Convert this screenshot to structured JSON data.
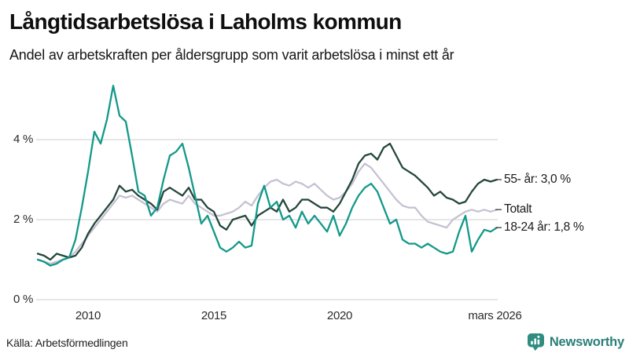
{
  "chart_data": {
    "type": "line",
    "title": "Långtidsarbetslösa i Laholms kommun",
    "subtitle": "Andel av arbetskraften per åldersgrupp som varit arbetslösa i minst ett år",
    "x_start": 2008.0,
    "x_step": 0.25,
    "x_end": 2026.25,
    "ylim": [
      0,
      5.5
    ],
    "grid": true,
    "yticks": [
      {
        "value": 0,
        "label": "0 %"
      },
      {
        "value": 2,
        "label": "2 %"
      },
      {
        "value": 4,
        "label": "4 %"
      }
    ],
    "xticks": [
      {
        "value": 2010,
        "label": "2010"
      },
      {
        "value": 2015,
        "label": "2015"
      },
      {
        "value": 2020,
        "label": "2020"
      },
      {
        "value": 2026.17,
        "label": "mars 2026"
      }
    ],
    "series": [
      {
        "name": "Totalt",
        "color": "#c5c2d3",
        "end_label": "Totalt",
        "end_value": 2.2,
        "values": [
          1.0,
          0.95,
          0.9,
          0.95,
          1.0,
          1.05,
          1.2,
          1.4,
          1.6,
          1.8,
          2.0,
          2.2,
          2.4,
          2.6,
          2.55,
          2.6,
          2.5,
          2.4,
          2.3,
          2.2,
          2.4,
          2.5,
          2.45,
          2.4,
          2.6,
          2.4,
          2.3,
          2.2,
          2.1,
          2.1,
          2.15,
          2.2,
          2.3,
          2.45,
          2.35,
          2.6,
          2.8,
          2.95,
          3.0,
          2.9,
          2.85,
          2.95,
          2.9,
          2.8,
          2.9,
          2.75,
          2.6,
          2.5,
          2.55,
          2.7,
          2.9,
          3.2,
          3.4,
          3.3,
          3.1,
          2.9,
          2.7,
          2.5,
          2.35,
          2.3,
          2.3,
          2.1,
          1.95,
          1.9,
          1.85,
          1.8,
          2.0,
          2.1,
          2.2,
          2.25,
          2.2,
          2.25,
          2.2,
          2.25
        ]
      },
      {
        "name": "55- år",
        "color": "#24473c",
        "end_label": "55- år: 3,0 %",
        "end_value": 3.0,
        "values": [
          1.15,
          1.1,
          1.0,
          1.15,
          1.1,
          1.05,
          1.1,
          1.3,
          1.65,
          1.9,
          2.1,
          2.3,
          2.5,
          2.85,
          2.7,
          2.75,
          2.6,
          2.5,
          2.4,
          2.25,
          2.7,
          2.8,
          2.7,
          2.6,
          2.8,
          2.5,
          2.5,
          2.3,
          2.2,
          1.85,
          1.75,
          2.0,
          2.05,
          2.1,
          1.85,
          2.1,
          2.2,
          2.3,
          2.2,
          2.5,
          2.2,
          2.3,
          2.5,
          2.5,
          2.4,
          2.3,
          2.3,
          2.2,
          2.4,
          2.7,
          3.0,
          3.4,
          3.6,
          3.65,
          3.5,
          3.8,
          3.9,
          3.6,
          3.3,
          3.2,
          3.1,
          2.95,
          2.8,
          2.6,
          2.7,
          2.55,
          2.5,
          2.4,
          2.45,
          2.7,
          2.9,
          3.0,
          2.95,
          3.0
        ]
      },
      {
        "name": "18-24 år",
        "color": "#12998a",
        "end_label": "18-24 år: 1,8 %",
        "end_value": 1.8,
        "values": [
          1.0,
          0.95,
          0.85,
          0.9,
          1.0,
          1.05,
          1.5,
          2.3,
          3.2,
          4.2,
          3.9,
          4.5,
          5.35,
          4.6,
          4.45,
          3.6,
          2.7,
          2.6,
          2.1,
          2.3,
          3.0,
          3.6,
          3.7,
          3.9,
          3.3,
          2.6,
          1.9,
          2.1,
          1.7,
          1.3,
          1.2,
          1.3,
          1.45,
          1.3,
          1.35,
          2.4,
          2.85,
          2.3,
          2.45,
          2.0,
          2.1,
          1.8,
          2.2,
          1.9,
          2.1,
          1.9,
          1.7,
          2.1,
          1.6,
          1.9,
          2.3,
          2.6,
          2.8,
          2.9,
          2.7,
          2.3,
          1.9,
          2.0,
          1.5,
          1.4,
          1.4,
          1.3,
          1.4,
          1.3,
          1.2,
          1.15,
          1.2,
          1.7,
          2.1,
          1.2,
          1.5,
          1.75,
          1.7,
          1.8
        ]
      }
    ],
    "gridline_color": "#d8d8d8",
    "leader_color": "#4a4a4a"
  },
  "footer": {
    "source": "Källa: Arbetsförmedlingen",
    "brand": "Newsworthy",
    "brand_color": "#2b7f76"
  }
}
